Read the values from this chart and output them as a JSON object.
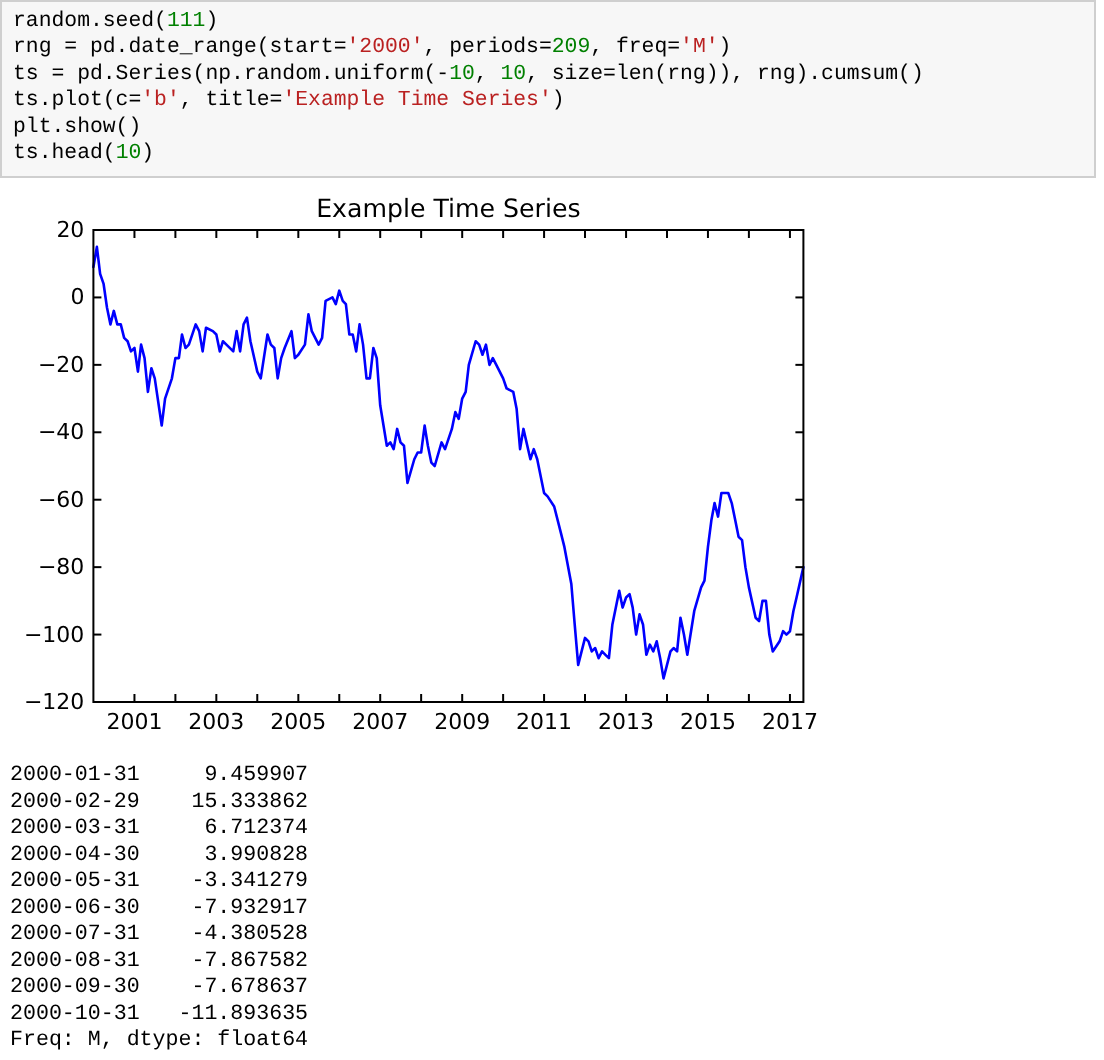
{
  "chart_data": {
    "type": "line",
    "title": "Example Time Series",
    "annotations": [
      "random.seed(111)",
      "rng = pd.date_range(start='2000', periods=209, freq='M')",
      "ts = pd.Series(np.random.uniform(-10, 10, size=len(rng)), rng).cumsum()",
      "ts.plot(c='b', title='Example Time Series')",
      "plt.show()",
      "ts.head(10)",
      "2000-01-31     9.459907",
      "2000-02-29    15.333862",
      "2000-03-31     6.712374",
      "2000-04-30     3.990828",
      "2000-05-31    -3.341279",
      "2000-06-30    -7.932917",
      "2000-07-31    -4.380528",
      "2000-08-31    -7.867582",
      "2000-09-30    -7.678637",
      "2000-10-31   -11.893635",
      "Freq: M, dtype: float64"
    ],
    "x": [
      "2000-01",
      "2000-02",
      "2000-03",
      "2000-04",
      "2000-05",
      "2000-06",
      "2000-07",
      "2000-08",
      "2000-09",
      "2000-10",
      "2000-11",
      "2000-12",
      "2001-01",
      "2001-02",
      "2001-03",
      "2001-04",
      "2001-05",
      "2001-06",
      "2001-07",
      "2001-09",
      "2001-10",
      "2001-12",
      "2002-01",
      "2002-02",
      "2002-03",
      "2002-04",
      "2002-05",
      "2002-07",
      "2002-08",
      "2002-09",
      "2002-10",
      "2002-12",
      "2003-01",
      "2003-02",
      "2003-03",
      "2003-04",
      "2003-06",
      "2003-07",
      "2003-08",
      "2003-09",
      "2003-10",
      "2003-11",
      "2004-01",
      "2004-02",
      "2004-04",
      "2004-05",
      "2004-06",
      "2004-07",
      "2004-08",
      "2004-09",
      "2004-11",
      "2004-12",
      "2005-01",
      "2005-03",
      "2005-04",
      "2005-05",
      "2005-07",
      "2005-08",
      "2005-09",
      "2005-11",
      "2005-12",
      "2006-01",
      "2006-02",
      "2006-03",
      "2006-04",
      "2006-05",
      "2006-06",
      "2006-07",
      "2006-08",
      "2006-09",
      "2006-10",
      "2006-11",
      "2006-12",
      "2007-01",
      "2007-03",
      "2007-04",
      "2007-05",
      "2007-06",
      "2007-07",
      "2007-08",
      "2007-09",
      "2007-11",
      "2007-12",
      "2008-01",
      "2008-02",
      "2008-03",
      "2008-04",
      "2008-05",
      "2008-07",
      "2008-08",
      "2008-10",
      "2008-11",
      "2008-12",
      "2009-01",
      "2009-02",
      "2009-03",
      "2009-05",
      "2009-06",
      "2009-07",
      "2009-08",
      "2009-09",
      "2009-10",
      "2009-11",
      "2010-01",
      "2010-02",
      "2010-04",
      "2010-05",
      "2010-06",
      "2010-07",
      "2010-09",
      "2010-10",
      "2010-11",
      "2011-01",
      "2011-02",
      "2011-04",
      "2011-06",
      "2011-07",
      "2011-09",
      "2011-10",
      "2011-11",
      "2012-01",
      "2012-02",
      "2012-03",
      "2012-04",
      "2012-05",
      "2012-06",
      "2012-07",
      "2012-08",
      "2012-09",
      "2012-11",
      "2012-12",
      "2013-01",
      "2013-02",
      "2013-03",
      "2013-04",
      "2013-05",
      "2013-06",
      "2013-07",
      "2013-08",
      "2013-09",
      "2013-10",
      "2013-11",
      "2013-12",
      "2014-02",
      "2014-03",
      "2014-04",
      "2014-05",
      "2014-06",
      "2014-07",
      "2014-09",
      "2014-11",
      "2014-12",
      "2015-01",
      "2015-02",
      "2015-03",
      "2015-04",
      "2015-05",
      "2015-07",
      "2015-08",
      "2015-09",
      "2015-10",
      "2015-11",
      "2015-12",
      "2016-01",
      "2016-03",
      "2016-04",
      "2016-05",
      "2016-06",
      "2016-07",
      "2016-08",
      "2016-10",
      "2016-11",
      "2016-12",
      "2017-01",
      "2017-02",
      "2017-03",
      "2017-05"
    ],
    "series": [
      {
        "color": "#0000ff",
        "values": [
          9,
          15,
          7,
          4,
          -3,
          -8,
          -4,
          -8,
          -8,
          -12,
          -13,
          -16,
          -15,
          -22,
          -14,
          -18,
          -28,
          -21,
          -24,
          -38,
          -30,
          -24,
          -18,
          -18,
          -11,
          -15,
          -14,
          -8,
          -10,
          -16,
          -9,
          -10,
          -11,
          -16,
          -13,
          -14,
          -16,
          -10,
          -16,
          -8,
          -6,
          -13,
          -22,
          -24,
          -11,
          -14,
          -15,
          -24,
          -18,
          -15,
          -10,
          -18,
          -17,
          -14,
          -5,
          -10,
          -14,
          -12,
          -1,
          0,
          -2,
          2,
          -1,
          -2,
          -11,
          -11,
          -16,
          -8,
          -14,
          -24,
          -24,
          -15,
          -18,
          -32,
          -44,
          -43,
          -45,
          -39,
          -43,
          -44,
          -55,
          -48,
          -46,
          -46,
          -38,
          -44,
          -49,
          -50,
          -43,
          -45,
          -39,
          -34,
          -36,
          -30,
          -28,
          -20,
          -13,
          -14,
          -17,
          -14,
          -20,
          -18,
          -20,
          -24,
          -27,
          -28,
          -33,
          -45,
          -39,
          -48,
          -45,
          -48,
          -58,
          -59,
          -62,
          -70,
          -74,
          -85,
          -97,
          -109,
          -101,
          -102,
          -105,
          -104,
          -107,
          -105,
          -106,
          -107,
          -97,
          -87,
          -92,
          -89,
          -88,
          -92,
          -100,
          -94,
          -97,
          -106,
          -103,
          -105,
          -102,
          -107,
          -113,
          -105,
          -104,
          -105,
          -95,
          -100,
          -106,
          -93,
          -86,
          -84,
          -74,
          -66,
          -61,
          -65,
          -58,
          -58,
          -61,
          -66,
          -71,
          -72,
          -80,
          -86,
          -95,
          -96,
          -90,
          -90,
          -100,
          -105,
          -102,
          -99,
          -100,
          -99,
          -93,
          -89,
          -80
        ]
      }
    ],
    "xlim": [
      "2000-01",
      "2017-05"
    ],
    "xticks": [
      "2001",
      {
        "value": "2002",
        "label": null
      },
      "2003",
      {
        "value": "2004",
        "label": null
      },
      "2005",
      {
        "value": "2006",
        "label": null
      },
      "2007",
      {
        "value": "2008",
        "label": null
      },
      "2009",
      {
        "value": "2010",
        "label": null
      },
      "2011",
      {
        "value": "2012",
        "label": null
      },
      "2013",
      {
        "value": "2014",
        "label": null
      },
      "2015",
      {
        "value": "2016",
        "label": null
      },
      "2017"
    ],
    "ylim": [
      -120,
      20
    ],
    "yticks": [
      {
        "value": -120,
        "label": "−120"
      },
      {
        "value": -100,
        "label": "−100"
      },
      {
        "value": -80,
        "label": "−80"
      },
      {
        "value": -60,
        "label": "−60"
      },
      {
        "value": -40,
        "label": "−40"
      },
      {
        "value": -20,
        "label": "−20"
      },
      0,
      20
    ]
  }
}
